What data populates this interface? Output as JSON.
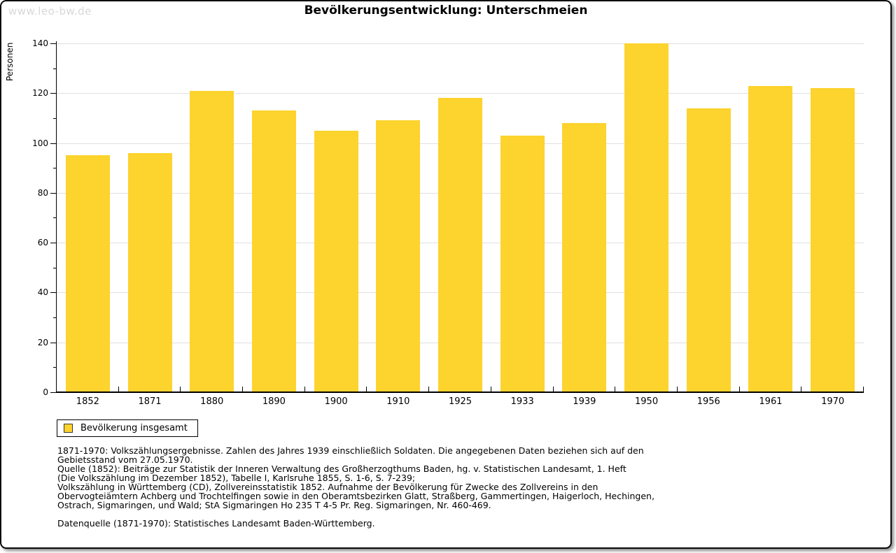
{
  "watermark": "www.leo-bw.de",
  "title": "Bevölkerungsentwicklung: Unterschmeien",
  "chart_data": {
    "type": "bar",
    "title": "Bevölkerungsentwicklung: Unterschmeien",
    "xlabel": "",
    "ylabel": "Personen",
    "ylim": [
      0,
      140
    ],
    "ytick_step": 20,
    "yminor_step": 10,
    "grid": true,
    "categories": [
      "1852",
      "1871",
      "1880",
      "1890",
      "1900",
      "1910",
      "1925",
      "1933",
      "1939",
      "1950",
      "1956",
      "1961",
      "1970"
    ],
    "series": [
      {
        "name": "Bevölkerung insgesamt",
        "values": [
          95,
          96,
          121,
          113,
          105,
          109,
          118,
          103,
          108,
          140,
          114,
          123,
          122
        ]
      }
    ],
    "bar_color": "#FDD32D",
    "legend_position": "bottom-left"
  },
  "legend": {
    "label": "Bevölkerung insgesamt",
    "swatch_color": "#FDD32D"
  },
  "footnotes": {
    "lines": [
      "1871-1970: Volkszählungsergebnisse. Zahlen des Jahres 1939 einschließlich Soldaten. Die angegebenen Daten beziehen sich auf den",
      "Gebietsstand vom 27.05.1970.",
      "Quelle (1852): Beiträge zur Statistik der Inneren Verwaltung des Großherzogthums Baden, hg. v. Statistischen Landesamt, 1. Heft",
      "(Die Volkszählung im Dezember 1852), Tabelle I, Karlsruhe 1855, S. 1-6, S. 7-239;",
      "Volkszählung in Württemberg (CD), Zollvereinsstatistik 1852. Aufnahme der Bevölkerung für Zwecke des Zollvereins in den",
      "Obervogteiämtern Achberg und Trochtelfingen sowie in den Oberamtsbezirken Glatt, Straßberg, Gammertingen, Haigerloch, Hechingen,",
      "Ostrach, Sigmaringen, und Wald; StA Sigmaringen Ho 235 T 4-5 Pr. Reg. Sigmaringen, Nr. 460-469."
    ],
    "datasource": "Datenquelle (1871-1970): Statistisches Landesamt Baden-Württemberg."
  }
}
